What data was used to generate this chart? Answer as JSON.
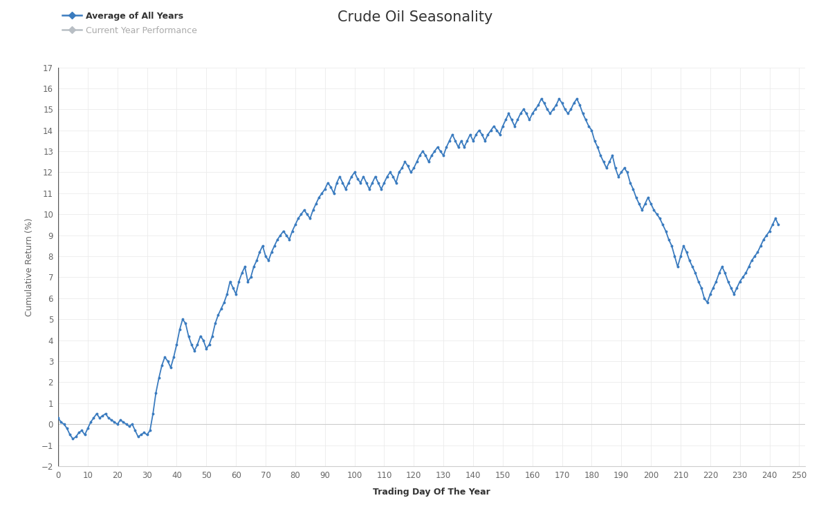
{
  "title": "Crude Oil Seasonality",
  "xlabel": "Trading Day Of The Year",
  "ylabel": "Cumulative Return (%)",
  "xlim": [
    0,
    252
  ],
  "ylim": [
    -2,
    17
  ],
  "yticks": [
    -2,
    -1,
    0,
    1,
    2,
    3,
    4,
    5,
    6,
    7,
    8,
    9,
    10,
    11,
    12,
    13,
    14,
    15,
    16,
    17
  ],
  "xticks": [
    0,
    10,
    20,
    30,
    40,
    50,
    60,
    70,
    80,
    90,
    100,
    110,
    120,
    130,
    140,
    150,
    160,
    170,
    180,
    190,
    200,
    210,
    220,
    230,
    240,
    250
  ],
  "line_color": "#3a7bbf",
  "line_color2": "#b8bec4",
  "background_color": "#ffffff",
  "title_fontsize": 15,
  "legend_label1": "Average of All Years",
  "legend_label2": "Current Year Performance",
  "y_data": [
    0.3,
    0.1,
    0.0,
    -0.2,
    -0.5,
    -0.7,
    -0.6,
    -0.4,
    -0.3,
    -0.5,
    -0.2,
    0.1,
    0.3,
    0.5,
    0.3,
    0.4,
    0.5,
    0.3,
    0.2,
    0.1,
    0.0,
    0.2,
    0.1,
    0.0,
    -0.1,
    0.0,
    -0.3,
    -0.6,
    -0.5,
    -0.4,
    -0.5,
    -0.3,
    0.5,
    1.5,
    2.2,
    2.8,
    3.2,
    3.0,
    2.7,
    3.2,
    3.8,
    4.5,
    5.0,
    4.8,
    4.2,
    3.8,
    3.5,
    3.8,
    4.2,
    4.0,
    3.6,
    3.8,
    4.2,
    4.8,
    5.2,
    5.5,
    5.8,
    6.2,
    6.8,
    6.5,
    6.2,
    6.8,
    7.2,
    7.5,
    6.8,
    7.0,
    7.5,
    7.8,
    8.2,
    8.5,
    8.0,
    7.8,
    8.2,
    8.5,
    8.8,
    9.0,
    9.2,
    9.0,
    8.8,
    9.2,
    9.5,
    9.8,
    10.0,
    10.2,
    10.0,
    9.8,
    10.2,
    10.5,
    10.8,
    11.0,
    11.2,
    11.5,
    11.3,
    11.0,
    11.5,
    11.8,
    11.5,
    11.2,
    11.5,
    11.8,
    12.0,
    11.7,
    11.5,
    11.8,
    11.5,
    11.2,
    11.5,
    11.8,
    11.5,
    11.2,
    11.5,
    11.8,
    12.0,
    11.8,
    11.5,
    12.0,
    12.2,
    12.5,
    12.3,
    12.0,
    12.2,
    12.5,
    12.8,
    13.0,
    12.8,
    12.5,
    12.8,
    13.0,
    13.2,
    13.0,
    12.8,
    13.2,
    13.5,
    13.8,
    13.5,
    13.2,
    13.5,
    13.2,
    13.5,
    13.8,
    13.5,
    13.8,
    14.0,
    13.8,
    13.5,
    13.8,
    14.0,
    14.2,
    14.0,
    13.8,
    14.2,
    14.5,
    14.8,
    14.5,
    14.2,
    14.5,
    14.8,
    15.0,
    14.8,
    14.5,
    14.8,
    15.0,
    15.2,
    15.5,
    15.3,
    15.0,
    14.8,
    15.0,
    15.2,
    15.5,
    15.3,
    15.0,
    14.8,
    15.0,
    15.3,
    15.5,
    15.2,
    14.8,
    14.5,
    14.2,
    14.0,
    13.5,
    13.2,
    12.8,
    12.5,
    12.2,
    12.5,
    12.8,
    12.2,
    11.8,
    12.0,
    12.2,
    12.0,
    11.5,
    11.2,
    10.8,
    10.5,
    10.2,
    10.5,
    10.8,
    10.5,
    10.2,
    10.0,
    9.8,
    9.5,
    9.2,
    8.8,
    8.5,
    8.0,
    7.5,
    8.0,
    8.5,
    8.2,
    7.8,
    7.5,
    7.2,
    6.8,
    6.5,
    6.0,
    5.8,
    6.2,
    6.5,
    6.8,
    7.2,
    7.5,
    7.2,
    6.8,
    6.5,
    6.2,
    6.5,
    6.8,
    7.0,
    7.2,
    7.5,
    7.8,
    8.0,
    8.2,
    8.5,
    8.8,
    9.0,
    9.2,
    9.5,
    9.8,
    9.5
  ]
}
